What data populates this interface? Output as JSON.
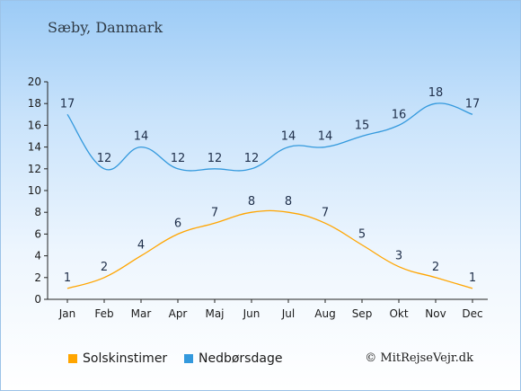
{
  "header": {
    "place": "Sæby, Danmark"
  },
  "credit": "© MitRejseVejr.dk",
  "chart_data": {
    "type": "line",
    "categories": [
      "Jan",
      "Feb",
      "Mar",
      "Apr",
      "Maj",
      "Jun",
      "Jul",
      "Aug",
      "Sep",
      "Okt",
      "Nov",
      "Dec"
    ],
    "series": [
      {
        "name": "Solskinstimer",
        "color": "#ffa500",
        "values": [
          1,
          2,
          4,
          6,
          7,
          8,
          8,
          7,
          5,
          3,
          2,
          1
        ]
      },
      {
        "name": "Nedbørsdage",
        "color": "#3399dd",
        "values": [
          17,
          12,
          14,
          12,
          12,
          12,
          14,
          14,
          15,
          16,
          18,
          17
        ]
      }
    ],
    "yticks": [
      0,
      2,
      4,
      6,
      8,
      10,
      12,
      14,
      16,
      18,
      20
    ],
    "ylim": [
      0,
      20
    ],
    "legend_position": "bottom"
  }
}
